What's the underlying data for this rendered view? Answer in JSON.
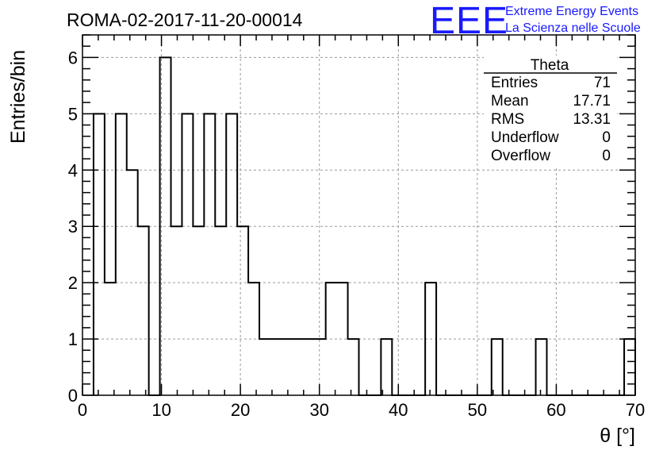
{
  "header": {
    "run_title": "ROMA-02-2017-11-20-00014",
    "logo_text": "EEE",
    "logo_line1": "Extreme Energy Events",
    "logo_line2": "La Scienza nelle Scuole"
  },
  "stats_box": {
    "title": "Theta",
    "rows": [
      {
        "label": "Entries",
        "value": "71"
      },
      {
        "label": "Mean",
        "value": "17.71"
      },
      {
        "label": "RMS",
        "value": "13.31"
      },
      {
        "label": "Underflow",
        "value": "0"
      },
      {
        "label": "Overflow",
        "value": "0"
      }
    ]
  },
  "chart_data": {
    "type": "bar",
    "histogram": true,
    "title": "ROMA-02-2017-11-20-00014",
    "xlabel": "θ [°]",
    "ylabel": "Entries/bin",
    "xlim": [
      0,
      70
    ],
    "ylim": [
      0,
      6.4
    ],
    "x_ticks": [
      0,
      10,
      20,
      30,
      40,
      50,
      60,
      70
    ],
    "y_ticks": [
      0,
      1,
      2,
      3,
      4,
      5,
      6
    ],
    "grid": true,
    "bin_edges": [
      1.4,
      2.8,
      4.2,
      5.6,
      7.0,
      8.4,
      9.8,
      11.2,
      12.6,
      14.0,
      15.4,
      16.8,
      18.2,
      19.6,
      21.0,
      22.4,
      23.8,
      25.2,
      26.6,
      28.0,
      29.4,
      30.8,
      32.2,
      33.6,
      35.0,
      36.4,
      37.8,
      39.2,
      40.6,
      42.0,
      43.4,
      44.8,
      46.2,
      47.6,
      49.0,
      50.4,
      51.8,
      53.2,
      54.6,
      56.0,
      57.4,
      58.8,
      60.2,
      61.6,
      63.0,
      64.4,
      65.8,
      67.2,
      68.6,
      70.0
    ],
    "values": [
      5,
      2,
      5,
      4,
      3,
      0,
      6,
      3,
      5,
      3,
      5,
      3,
      5,
      3,
      2,
      1,
      1,
      1,
      1,
      1,
      1,
      2,
      2,
      1,
      0,
      0,
      1,
      0,
      0,
      0,
      2,
      0,
      0,
      0,
      0,
      0,
      1,
      0,
      0,
      0,
      1,
      0,
      0,
      0,
      0,
      0,
      0,
      0,
      1
    ]
  }
}
